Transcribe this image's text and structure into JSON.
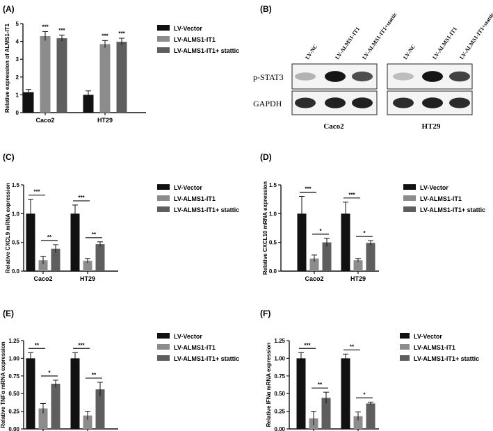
{
  "colors": {
    "vector": "#111111",
    "alms": "#8c8c8c",
    "stattic": "#5e5e5e",
    "axis": "#111111"
  },
  "panel_b": {
    "letter": "(B)",
    "lane_labels_caco2": [
      "LV-NC",
      "LV-ALMS1-IT1",
      "LV-ALMS1-IT1+stattic"
    ],
    "lane_labels_ht29": [
      "LV-NC",
      "LV-ALMS1-IT1",
      "LV-ALMS1-IT1+stattic"
    ],
    "row_labels": [
      "p-STAT3",
      "GAPDH"
    ],
    "group_labels": [
      "Caco2",
      "HT29"
    ],
    "bands_pstat3_caco2": [
      0.25,
      0.95,
      0.7
    ],
    "bands_pstat3_ht29": [
      0.2,
      0.95,
      0.75
    ],
    "bands_gapdh_caco2": [
      0.85,
      0.9,
      0.9
    ],
    "bands_gapdh_ht29": [
      0.85,
      0.9,
      0.85
    ]
  },
  "chart_data": [
    {
      "id": "A",
      "letter": "(A)",
      "type": "bar",
      "categories": [
        "Caco2",
        "HT29"
      ],
      "series": [
        {
          "name": "LV-Vector",
          "values": [
            1.15,
            1.0
          ],
          "errors": [
            0.15,
            0.22
          ]
        },
        {
          "name": "LV-ALMS1-IT1",
          "values": [
            4.3,
            3.85
          ],
          "errors": [
            0.25,
            0.2
          ]
        },
        {
          "name": "LV-ALMS1-IT1+ stattic",
          "values": [
            4.18,
            3.98
          ],
          "errors": [
            0.18,
            0.2
          ]
        }
      ],
      "ylabel": "Relative expression of ALMS1-IT1",
      "ylim": [
        0,
        5
      ],
      "yticks": [
        "0",
        "1",
        "2",
        "3",
        "4",
        "5"
      ],
      "annotations": [
        {
          "text": "***",
          "group": 0,
          "bar": 1
        },
        {
          "text": "***",
          "group": 0,
          "bar": 2
        },
        {
          "text": "***",
          "group": 1,
          "bar": 1
        },
        {
          "text": "***",
          "group": 1,
          "bar": 2
        }
      ]
    },
    {
      "id": "C",
      "letter": "(C)",
      "type": "bar",
      "categories": [
        "Caco2",
        "HT29"
      ],
      "series": [
        {
          "name": "LV-Vector",
          "values": [
            1.0,
            1.0
          ],
          "errors": [
            0.25,
            0.15
          ]
        },
        {
          "name": "LV-ALMS1-IT1",
          "values": [
            0.19,
            0.18
          ],
          "errors": [
            0.07,
            0.04
          ]
        },
        {
          "name": "LV-ALMS1-IT1+ stattic",
          "values": [
            0.39,
            0.47
          ],
          "errors": [
            0.07,
            0.04
          ]
        }
      ],
      "ylabel": "Relative CXCL9 mRNA expression",
      "ylim": [
        0,
        1.5
      ],
      "yticks": [
        "0.0",
        "0.5",
        "1.0",
        "1.5"
      ],
      "annotations": [
        {
          "text": "***",
          "group": 0,
          "from": 0,
          "to": 1
        },
        {
          "text": "**",
          "group": 0,
          "from": 1,
          "to": 2
        },
        {
          "text": "***",
          "group": 1,
          "from": 0,
          "to": 1
        },
        {
          "text": "**",
          "group": 1,
          "from": 1,
          "to": 2
        }
      ]
    },
    {
      "id": "D",
      "letter": "(D)",
      "type": "bar",
      "categories": [
        "Caco2",
        "HT29"
      ],
      "series": [
        {
          "name": "LV-Vector",
          "values": [
            1.0,
            1.0
          ],
          "errors": [
            0.3,
            0.2
          ]
        },
        {
          "name": "LV-ALMS1-IT1",
          "values": [
            0.22,
            0.19
          ],
          "errors": [
            0.06,
            0.03
          ]
        },
        {
          "name": "LV-ALMS1-IT1+ stattic",
          "values": [
            0.5,
            0.49
          ],
          "errors": [
            0.07,
            0.04
          ]
        }
      ],
      "ylabel": "Relative CXCL10 mRNA expression",
      "ylim": [
        0,
        1.5
      ],
      "yticks": [
        "0.0",
        "0.5",
        "1.0",
        "1.5"
      ],
      "annotations": [
        {
          "text": "***",
          "group": 0,
          "from": 0,
          "to": 1
        },
        {
          "text": "*",
          "group": 0,
          "from": 1,
          "to": 2
        },
        {
          "text": "***",
          "group": 1,
          "from": 0,
          "to": 1
        },
        {
          "text": "*",
          "group": 1,
          "from": 1,
          "to": 2
        }
      ]
    },
    {
      "id": "E",
      "letter": "(E)",
      "type": "bar",
      "categories": [
        "Caco2",
        "HT29"
      ],
      "series": [
        {
          "name": "LV-Vector",
          "values": [
            1.0,
            1.0
          ],
          "errors": [
            0.08,
            0.08
          ]
        },
        {
          "name": "LV-ALMS1-IT1",
          "values": [
            0.29,
            0.19
          ],
          "errors": [
            0.07,
            0.06
          ]
        },
        {
          "name": "LV-ALMS1-IT1+ stattic",
          "values": [
            0.64,
            0.56
          ],
          "errors": [
            0.05,
            0.1
          ]
        }
      ],
      "ylabel": "Relative TNFα mRNA expression",
      "ylim": [
        0,
        1.25
      ],
      "yticks": [
        "0.00",
        "0.25",
        "0.50",
        "0.75",
        "1.00",
        "1.25"
      ],
      "annotations": [
        {
          "text": "**",
          "group": 0,
          "from": 0,
          "to": 1
        },
        {
          "text": "*",
          "group": 0,
          "from": 1,
          "to": 2
        },
        {
          "text": "***",
          "group": 1,
          "from": 0,
          "to": 1
        },
        {
          "text": "**",
          "group": 1,
          "from": 1,
          "to": 2
        }
      ]
    },
    {
      "id": "F",
      "letter": "(F)",
      "type": "bar",
      "categories": [
        "Caco2",
        "HT29"
      ],
      "series": [
        {
          "name": "LV-Vector",
          "values": [
            1.0,
            1.0
          ],
          "errors": [
            0.08,
            0.06
          ]
        },
        {
          "name": "LV-ALMS1-IT1",
          "values": [
            0.15,
            0.18
          ],
          "errors": [
            0.1,
            0.06
          ]
        },
        {
          "name": "LV-ALMS1-IT1+ stattic",
          "values": [
            0.44,
            0.36
          ],
          "errors": [
            0.08,
            0.02
          ]
        }
      ],
      "ylabel": "Relative IFNα mRNA expression",
      "ylim": [
        0,
        1.25
      ],
      "yticks": [
        "0.00",
        "0.25",
        "0.50",
        "0.75",
        "1.00",
        "1.25"
      ],
      "annotations": [
        {
          "text": "***",
          "group": 0,
          "from": 0,
          "to": 1
        },
        {
          "text": "**",
          "group": 0,
          "from": 1,
          "to": 2
        },
        {
          "text": "**",
          "group": 1,
          "from": 0,
          "to": 1
        },
        {
          "text": "*",
          "group": 1,
          "from": 1,
          "to": 2
        }
      ]
    }
  ]
}
